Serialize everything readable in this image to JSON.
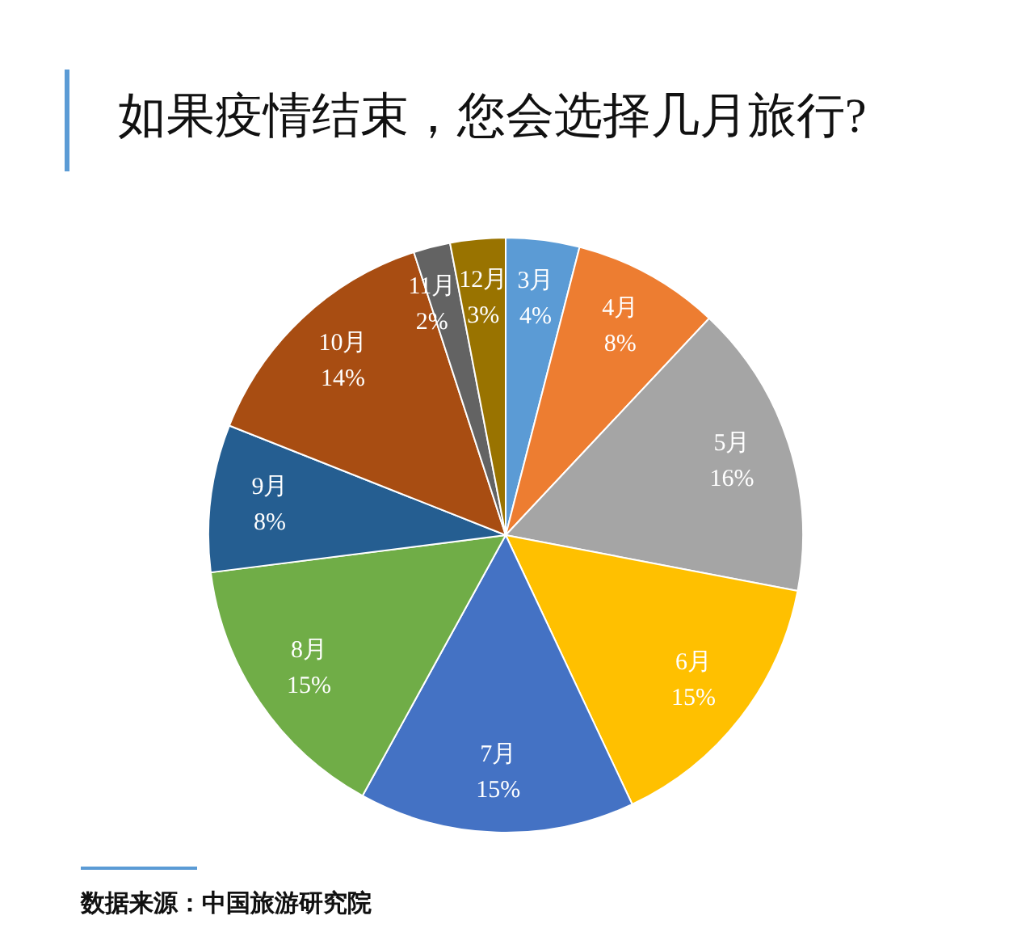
{
  "chart_data": {
    "type": "pie",
    "title": "如果疫情结束，您会选择几月旅行?",
    "categories": [
      "3月",
      "4月",
      "5月",
      "6月",
      "7月",
      "8月",
      "9月",
      "10月",
      "11月",
      "12月"
    ],
    "values": [
      4,
      8,
      16,
      15,
      15,
      15,
      8,
      14,
      2,
      3
    ],
    "colors": [
      "#5b9bd5",
      "#ed7d31",
      "#a5a5a5",
      "#ffc000",
      "#4472c4",
      "#70ad47",
      "#255e91",
      "#a84d12",
      "#636363",
      "#997300"
    ],
    "value_labels": [
      "4%",
      "8%",
      "16%",
      "15%",
      "15%",
      "15%",
      "8%",
      "14%",
      "2%",
      "3%"
    ],
    "annotations": [
      "数据来源：中国旅游研究院"
    ]
  }
}
